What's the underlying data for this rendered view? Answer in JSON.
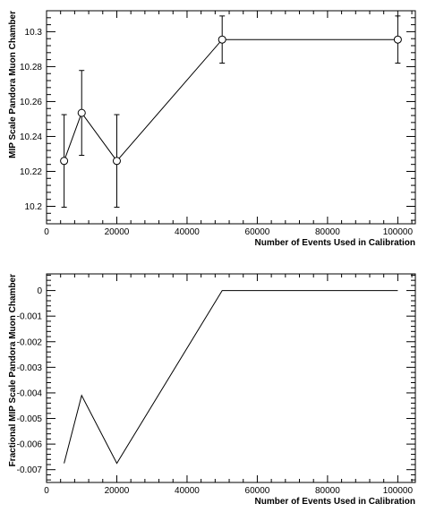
{
  "chart_data": [
    {
      "type": "line",
      "title": "",
      "xlabel": "Number of Events Used in Calibration",
      "ylabel": "MIP Scale Pandora Muon Chamber",
      "xlim": [
        0,
        105000
      ],
      "ylim": [
        10.19,
        10.312
      ],
      "grid": false,
      "x_ticks": [
        {
          "value": 0,
          "label": "0"
        },
        {
          "value": 20000,
          "label": "20000"
        },
        {
          "value": 40000,
          "label": "40000"
        },
        {
          "value": 60000,
          "label": "60000"
        },
        {
          "value": 80000,
          "label": "80000"
        },
        {
          "value": 100000,
          "label": "100000"
        }
      ],
      "y_ticks": [
        {
          "value": 10.2,
          "label": "10.2"
        },
        {
          "value": 10.22,
          "label": "10.22"
        },
        {
          "value": 10.24,
          "label": "10.24"
        },
        {
          "value": 10.26,
          "label": "10.26"
        },
        {
          "value": 10.28,
          "label": "10.28"
        },
        {
          "value": 10.3,
          "label": "10.3"
        }
      ],
      "markers": "open-circle",
      "points": [
        {
          "x": 5000,
          "y": 10.226,
          "err": 0.0265
        },
        {
          "x": 10000,
          "y": 10.2535,
          "err": 0.0243
        },
        {
          "x": 20000,
          "y": 10.226,
          "err": 0.0265
        },
        {
          "x": 50000,
          "y": 10.2955,
          "err": 0.0135
        },
        {
          "x": 100000,
          "y": 10.2955,
          "err": 0.0135
        }
      ]
    },
    {
      "type": "line",
      "title": "",
      "xlabel": "Number of Events Used in Calibration",
      "ylabel": "Fractional MIP Scale Pandora Muon Chamber",
      "xlim": [
        0,
        105000
      ],
      "ylim": [
        -0.0075,
        0.00065
      ],
      "grid": false,
      "x_ticks": [
        {
          "value": 0,
          "label": "0"
        },
        {
          "value": 20000,
          "label": "20000"
        },
        {
          "value": 40000,
          "label": "40000"
        },
        {
          "value": 60000,
          "label": "60000"
        },
        {
          "value": 80000,
          "label": "80000"
        },
        {
          "value": 100000,
          "label": "100000"
        }
      ],
      "y_ticks": [
        {
          "value": 0,
          "label": "0"
        },
        {
          "value": -0.001,
          "label": "-0.001"
        },
        {
          "value": -0.002,
          "label": "-0.002"
        },
        {
          "value": -0.003,
          "label": "-0.003"
        },
        {
          "value": -0.004,
          "label": "-0.004"
        },
        {
          "value": -0.005,
          "label": "-0.005"
        },
        {
          "value": -0.006,
          "label": "-0.006"
        },
        {
          "value": -0.007,
          "label": "-0.007"
        }
      ],
      "markers": "none",
      "points": [
        {
          "x": 5000,
          "y": -0.00675
        },
        {
          "x": 10000,
          "y": -0.0041
        },
        {
          "x": 20000,
          "y": -0.00675
        },
        {
          "x": 50000,
          "y": 0
        },
        {
          "x": 100000,
          "y": 0
        }
      ]
    }
  ]
}
